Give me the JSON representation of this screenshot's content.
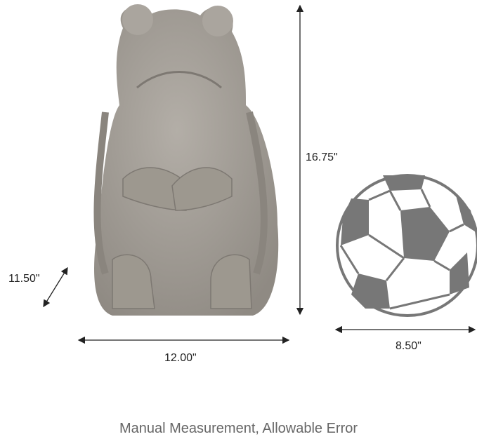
{
  "dimensions": {
    "height": "16.75\"",
    "width": "12.00\"",
    "depth": "11.50\"",
    "ball_diameter": "8.50\""
  },
  "caption": "Manual Measurement, Allowable Error",
  "colors": {
    "statue": "#a39e97",
    "ball_patch": "#777777",
    "text": "#222222",
    "caption": "#666666"
  }
}
